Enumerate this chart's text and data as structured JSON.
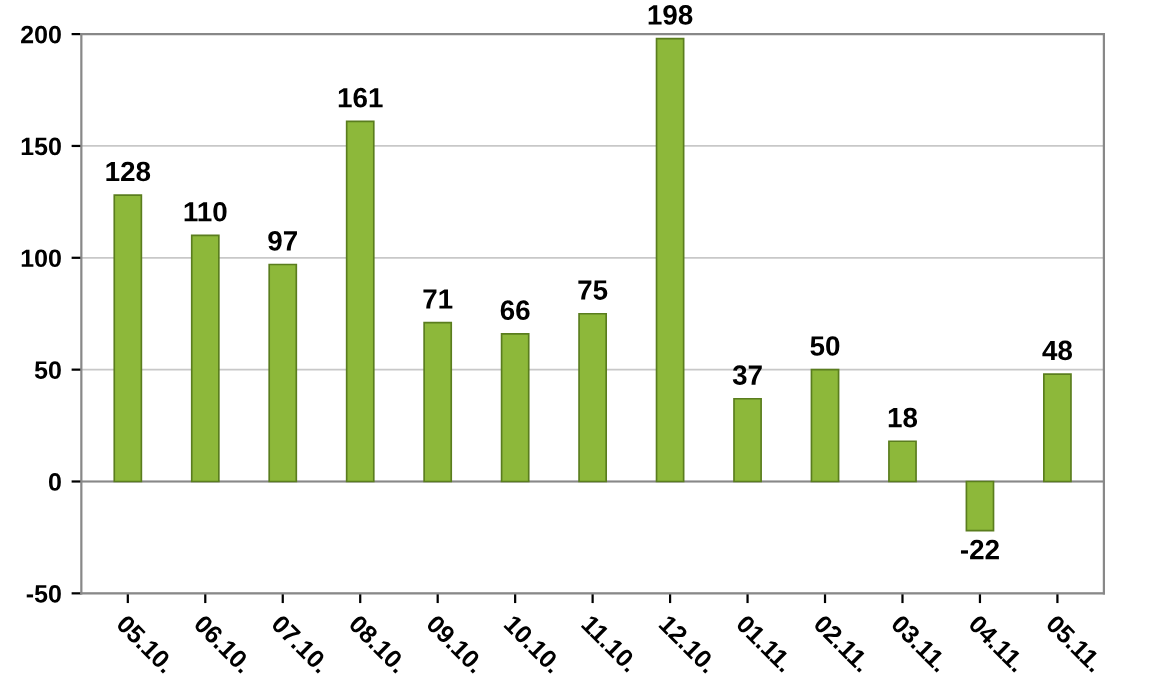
{
  "chart_data": {
    "type": "bar",
    "categories": [
      "05.10.",
      "06.10.",
      "07.10.",
      "08.10.",
      "09.10.",
      "10.10.",
      "11.10.",
      "12.10.",
      "01.11.",
      "02.11.",
      "03.11.",
      "04.11.",
      "05.11."
    ],
    "values": [
      128,
      110,
      97,
      161,
      71,
      66,
      75,
      198,
      37,
      50,
      18,
      -22,
      48
    ],
    "color": "#8db83a",
    "ylim": [
      -50,
      200
    ],
    "yticks": [
      {
        "value": -50,
        "label": "-50"
      },
      0,
      50,
      100,
      150,
      200
    ],
    "grid": "y",
    "data_labels": true
  }
}
